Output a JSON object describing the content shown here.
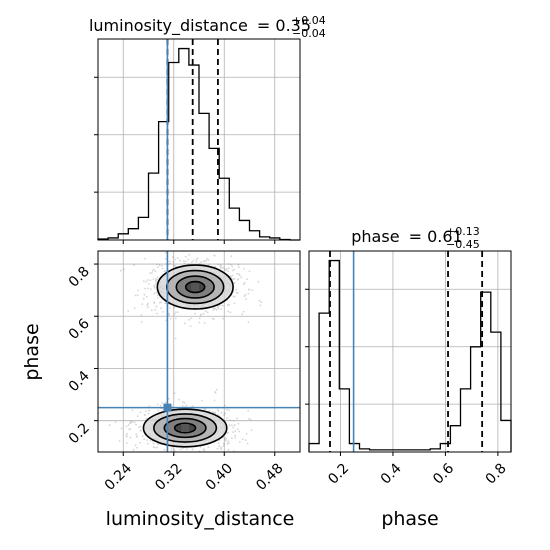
{
  "chart_data": {
    "type": "corner",
    "parameters": [
      "luminosity_distance",
      "phase"
    ],
    "truth_values": {
      "luminosity_distance": 0.31,
      "phase": 0.25
    },
    "grid": true,
    "panels": [
      {
        "type": "histogram",
        "parameter": "luminosity_distance",
        "title": {
          "label": "luminosity_distance",
          "median": "0.35",
          "plus": "+0.04",
          "minus": "−0.04"
        },
        "xlim": [
          0.2,
          0.52
        ],
        "bin_edges": [
          0.2,
          0.216,
          0.232,
          0.248,
          0.264,
          0.28,
          0.296,
          0.312,
          0.328,
          0.344,
          0.36,
          0.376,
          0.392,
          0.408,
          0.424,
          0.44,
          0.456,
          0.472,
          0.488,
          0.504,
          0.52
        ],
        "counts": [
          2,
          4,
          12,
          22,
          44,
          130,
          230,
          345,
          372,
          340,
          246,
          178,
          120,
          62,
          38,
          18,
          6,
          4,
          1,
          0
        ],
        "quantiles": [
          0.31,
          0.35,
          0.39
        ],
        "truth": 0.31
      },
      {
        "type": "histogram",
        "parameter": "phase",
        "title": {
          "label": "phase",
          "median": "0.61",
          "plus": "+0.13",
          "minus": "−0.45"
        },
        "xlim": [
          0.08,
          0.85
        ],
        "xticks": [
          0.2,
          0.4,
          0.6,
          0.8
        ],
        "xticklabels": [
          "0.2",
          "0.4",
          "0.6",
          "0.8"
        ],
        "xlabel": "phase",
        "bin_edges": [
          0.08,
          0.1185,
          0.157,
          0.1955,
          0.234,
          0.2725,
          0.311,
          0.3495,
          0.388,
          0.4265,
          0.465,
          0.5035,
          0.542,
          0.5805,
          0.619,
          0.6575,
          0.696,
          0.7345,
          0.773,
          0.8115,
          0.85
        ],
        "counts": [
          8,
          132,
          182,
          60,
          8,
          3,
          2,
          2,
          2,
          2,
          2,
          2,
          3,
          8,
          25,
          60,
          100,
          152,
          114,
          30
        ],
        "quantiles": [
          0.16,
          0.61,
          0.74
        ],
        "truth": 0.25
      },
      {
        "type": "2d-density",
        "x": "luminosity_distance",
        "y": "phase",
        "xlim": [
          0.2,
          0.52
        ],
        "ylim": [
          0.08,
          0.85
        ],
        "xticks": [
          0.24,
          0.32,
          0.4,
          0.48
        ],
        "xticklabels": [
          "0.24",
          "0.32",
          "0.40",
          "0.48"
        ],
        "yticks": [
          0.2,
          0.4,
          0.6,
          0.8
        ],
        "yticklabels": [
          "0.2",
          "0.4",
          "0.6",
          "0.8"
        ],
        "xlabel": "luminosity_distance",
        "ylabel": "phase",
        "modes": [
          {
            "x_center": 0.354,
            "y_center": 0.712,
            "x_sigma": 0.03,
            "y_sigma": 0.042,
            "weight": 0.55
          },
          {
            "x_center": 0.338,
            "y_center": 0.172,
            "x_sigma": 0.033,
            "y_sigma": 0.036,
            "weight": 0.45
          }
        ],
        "contour_levels": [
          "0.5 sigma",
          "1 sigma",
          "1.5 sigma",
          "2 sigma"
        ],
        "truth": {
          "x": 0.31,
          "y": 0.25
        }
      }
    ],
    "colors": {
      "histogram": "#000000",
      "quantile": "#000000",
      "truth": "#4682b4",
      "contour": "#000000",
      "grid": "#b0b0b0",
      "points": "#888888",
      "density_fill": [
        "#d4d4d4",
        "#a8a8a8",
        "#6e6e6e",
        "#333333"
      ]
    }
  }
}
